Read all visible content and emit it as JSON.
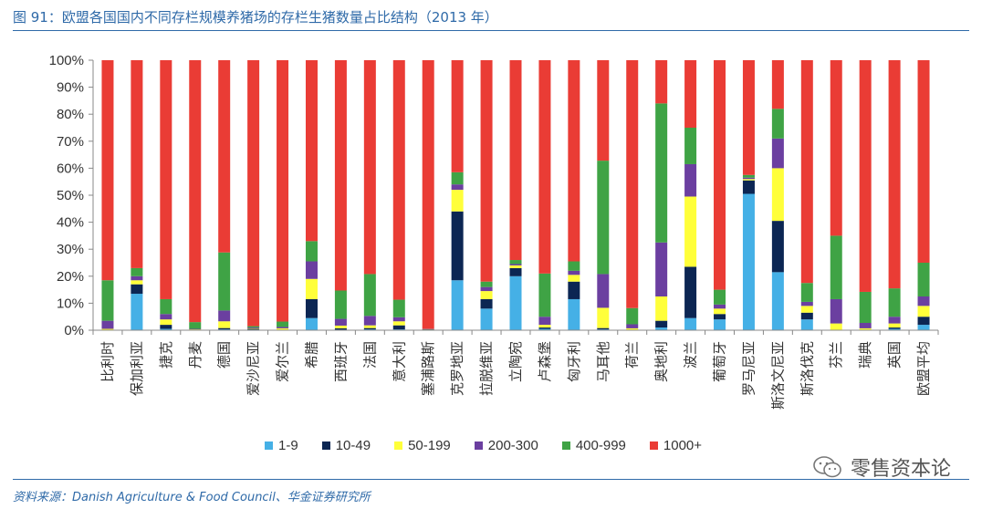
{
  "title": "图 91：欧盟各国国内不同存栏规模养猪场的存栏生猪数量占比结构（2013 年）",
  "source": "资料来源：Danish Agriculture & Food Council、华金证券研究所",
  "watermark": "零售资本论",
  "chart_data": {
    "type": "bar",
    "stacked": true,
    "title": "图 91：欧盟各国国内不同存栏规模养猪场的存栏生猪数量占比结构（2013 年）",
    "xlabel": "",
    "ylabel": "",
    "ylim": [
      0,
      100
    ],
    "yticks": [
      "0%",
      "10%",
      "20%",
      "30%",
      "40%",
      "50%",
      "60%",
      "70%",
      "80%",
      "90%",
      "100%"
    ],
    "legend_position": "bottom",
    "grid": false,
    "categories": [
      "比利时",
      "保加利亚",
      "捷克",
      "丹麦",
      "德国",
      "爱沙尼亚",
      "爱尔兰",
      "希腊",
      "西班牙",
      "法国",
      "意大利",
      "塞浦路斯",
      "克罗地亚",
      "拉脱维亚",
      "立陶宛",
      "卢森堡",
      "匈牙利",
      "马耳他",
      "荷兰",
      "奥地利",
      "波兰",
      "葡萄牙",
      "罗马尼亚",
      "斯洛文尼亚",
      "斯洛伐克",
      "芬兰",
      "瑞典",
      "英国",
      "欧盟平均"
    ],
    "series": [
      {
        "name": "1-9",
        "color": "#45b0e6",
        "values": [
          0,
          13.5,
          0.5,
          0,
          0.3,
          0.2,
          0,
          4.5,
          0.2,
          0.3,
          0.3,
          0,
          18.5,
          8,
          20,
          0.5,
          11.5,
          0.3,
          0,
          1,
          4.5,
          4,
          50.5,
          21.5,
          4,
          0,
          0,
          0.5,
          2
        ]
      },
      {
        "name": "10-49",
        "color": "#0c2653",
        "values": [
          0,
          3.5,
          1.5,
          0,
          0.5,
          0.3,
          0.2,
          7,
          0.5,
          0.5,
          1.5,
          0.3,
          25.5,
          3.5,
          3,
          0.5,
          6.5,
          0.5,
          0.2,
          2.5,
          19,
          2,
          5,
          19,
          2.5,
          0,
          0.2,
          0.5,
          3
        ]
      },
      {
        "name": "50-199",
        "color": "#ffff3a",
        "values": [
          0.5,
          1.5,
          2,
          0.3,
          2.5,
          0.2,
          0.5,
          7.5,
          1,
          1,
          1.5,
          0.1,
          8,
          3,
          1,
          1,
          2.5,
          7.5,
          0.5,
          9,
          26,
          2,
          0.5,
          19.5,
          2.5,
          2.5,
          0.5,
          1.5,
          4
        ]
      },
      {
        "name": "200-300",
        "color": "#6b3fa0",
        "values": [
          3,
          1.5,
          2,
          0.2,
          4,
          0.3,
          0.5,
          6.5,
          2.5,
          3.5,
          1.5,
          0.1,
          2,
          1.5,
          0.5,
          3,
          1.5,
          12.5,
          1.5,
          20,
          12,
          1.5,
          0.5,
          11,
          1.5,
          9,
          2,
          2.5,
          3.5
        ]
      },
      {
        "name": "400-999",
        "color": "#3fa345",
        "values": [
          15,
          3,
          5.5,
          2.5,
          21.5,
          0.5,
          2,
          7.5,
          10.5,
          15.5,
          6.5,
          0,
          4.5,
          2,
          1.5,
          16,
          3.5,
          42,
          6,
          51.5,
          13.5,
          5.5,
          1,
          11,
          7,
          23.5,
          11.5,
          10.5,
          12.5
        ]
      },
      {
        "name": "1000+",
        "color": "#ea3c35",
        "values": [
          81.5,
          77,
          88.5,
          97,
          71.2,
          98.5,
          96.8,
          67,
          85.3,
          79.2,
          88.7,
          99.5,
          41.5,
          82,
          74,
          79,
          74.5,
          37.2,
          91.8,
          16,
          25,
          85,
          42.5,
          18,
          82.5,
          65,
          85.8,
          84.5,
          75
        ]
      }
    ]
  }
}
